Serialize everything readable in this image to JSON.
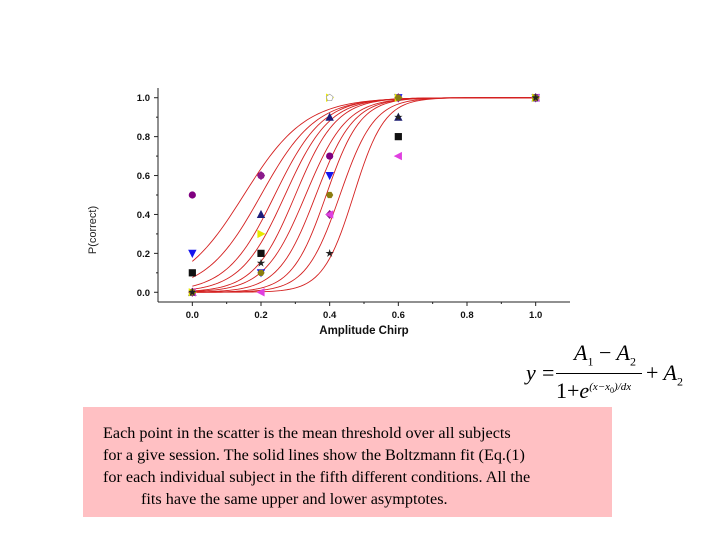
{
  "chart_data": {
    "type": "scatter",
    "xlabel": "Amplitude Chirp",
    "ylabel": "P(correct)",
    "xlim": [
      -0.1,
      1.1
    ],
    "ylim": [
      -0.05,
      1.05
    ],
    "x_ticks": [
      "0.0",
      "0.2",
      "0.4",
      "0.6",
      "0.8",
      "1.0"
    ],
    "y_ticks": [
      "0.0",
      "0.2",
      "0.4",
      "0.6",
      "0.8",
      "1.0"
    ],
    "grid": false,
    "fit_color": "#d42020",
    "series": [
      {
        "marker": "square",
        "color": "#111111",
        "points": [
          [
            0.0,
            0.1
          ],
          [
            0.2,
            0.2
          ],
          [
            0.6,
            0.8
          ],
          [
            1.0,
            1.0
          ]
        ]
      },
      {
        "marker": "circle",
        "color": "#800080",
        "points": [
          [
            0.0,
            0.5
          ],
          [
            0.2,
            0.6
          ],
          [
            0.4,
            0.7
          ],
          [
            0.6,
            1.0
          ],
          [
            1.0,
            1.0
          ]
        ]
      },
      {
        "marker": "triangle-up",
        "color": "#1d1d7a",
        "points": [
          [
            0.0,
            0.0
          ],
          [
            0.2,
            0.4
          ],
          [
            0.4,
            0.9
          ],
          [
            0.6,
            0.9
          ],
          [
            1.0,
            1.0
          ]
        ]
      },
      {
        "marker": "triangle-down",
        "color": "#1515ee",
        "points": [
          [
            0.0,
            0.2
          ],
          [
            0.2,
            0.1
          ],
          [
            0.4,
            0.6
          ],
          [
            0.6,
            1.0
          ],
          [
            1.0,
            1.0
          ]
        ]
      },
      {
        "marker": "diamond",
        "color": "#8b1a8b",
        "points": [
          [
            0.0,
            0.0
          ],
          [
            0.2,
            0.6
          ],
          [
            0.4,
            0.4
          ],
          [
            0.6,
            1.0
          ],
          [
            1.0,
            1.0
          ]
        ]
      },
      {
        "marker": "triangle-left",
        "color": "#e040e0",
        "points": [
          [
            0.0,
            0.0
          ],
          [
            0.2,
            0.0
          ],
          [
            0.4,
            0.4
          ],
          [
            0.6,
            0.7
          ],
          [
            1.0,
            1.0
          ]
        ]
      },
      {
        "marker": "triangle-right",
        "color": "#e8e800",
        "points": [
          [
            0.0,
            0.0
          ],
          [
            0.2,
            0.3
          ],
          [
            0.4,
            1.0
          ],
          [
            0.6,
            1.0
          ],
          [
            1.0,
            1.0
          ]
        ]
      },
      {
        "marker": "hexagon",
        "color": "#8b7d10",
        "points": [
          [
            0.0,
            0.0
          ],
          [
            0.2,
            0.1
          ],
          [
            0.4,
            0.5
          ],
          [
            0.6,
            1.0
          ],
          [
            1.0,
            1.0
          ]
        ]
      },
      {
        "marker": "star",
        "color": "#222222",
        "points": [
          [
            0.0,
            0.0
          ],
          [
            0.2,
            0.15
          ],
          [
            0.4,
            0.2
          ],
          [
            0.6,
            0.9
          ],
          [
            1.0,
            1.0
          ]
        ]
      },
      {
        "marker": "pentagon",
        "color": "#ffffff",
        "points": [
          [
            0.4,
            1.0
          ]
        ]
      }
    ],
    "fits": [
      {
        "A1": 0,
        "A2": 1,
        "x0": 0.15,
        "dx": 0.09
      },
      {
        "A1": 0,
        "A2": 1,
        "x0": 0.2,
        "dx": 0.08
      },
      {
        "A1": 0,
        "A2": 1,
        "x0": 0.24,
        "dx": 0.07
      },
      {
        "A1": 0,
        "A2": 1,
        "x0": 0.27,
        "dx": 0.065
      },
      {
        "A1": 0,
        "A2": 1,
        "x0": 0.3,
        "dx": 0.06
      },
      {
        "A1": 0,
        "A2": 1,
        "x0": 0.33,
        "dx": 0.06
      },
      {
        "A1": 0,
        "A2": 1,
        "x0": 0.36,
        "dx": 0.055
      },
      {
        "A1": 0,
        "A2": 1,
        "x0": 0.39,
        "dx": 0.05
      },
      {
        "A1": 0,
        "A2": 1,
        "x0": 0.43,
        "dx": 0.05
      },
      {
        "A1": 0,
        "A2": 1,
        "x0": 0.47,
        "dx": 0.045
      }
    ]
  },
  "formula": {
    "lhs": "y",
    "equals": "=",
    "numerator_a": "A",
    "numerator_a_sub": "1",
    "minus": "−",
    "numerator_b": "A",
    "numerator_b_sub": "2",
    "denominator_one": "1",
    "plus_den": "+",
    "base": "e",
    "exponent": "(x−x",
    "exponent_sub": "0",
    "exponent_tail": ")/dx",
    "plus": "+",
    "tail_a": "A",
    "tail_a_sub": "2"
  },
  "caption": {
    "line1": "Each point in the scatter is the mean threshold over all subjects",
    "line2": "for a give session. The solid lines show the Boltzmann fit (Eq.(1)",
    "line3": "for each individual subject in the fifth different conditions. All the",
    "line4": "fits have the same upper and lower asymptotes."
  }
}
